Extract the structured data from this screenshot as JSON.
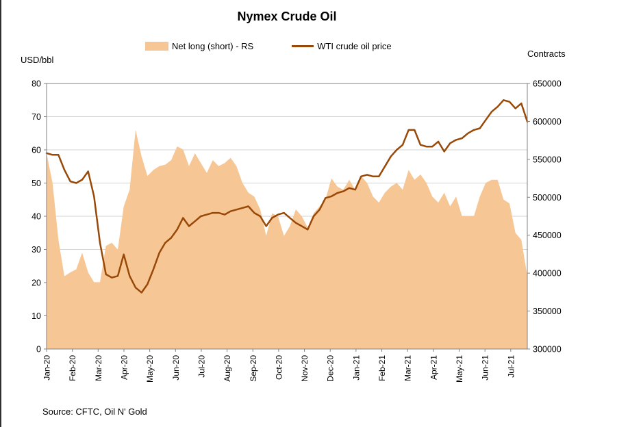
{
  "page": {
    "title": "Nymex Crude Oil",
    "source": "Source: CFTC, Oil N' Gold",
    "left_axis_unit": "USD/bbl",
    "right_axis_unit": "Contracts"
  },
  "legend": {
    "area_label": "Net long (short) - RS",
    "line_label": "WTI crude oil price"
  },
  "colors": {
    "area_fill": "#F7C695",
    "line": "#984807",
    "gridline": "#D3D3D3",
    "axis_border": "#808080",
    "text": "#000000",
    "background": "#FFFFFF"
  },
  "chart_data": {
    "type": "area",
    "subtype": "combo-area-line-dual-axis",
    "title": "Nymex Crude Oil",
    "grid": "horizontal",
    "legend_position": "top",
    "x_tick_labels": [
      "Jan-20",
      "Feb-20",
      "Mar-20",
      "Apr-20",
      "May-20",
      "Jun-20",
      "Jul-20",
      "Aug-20",
      "Sep-20",
      "Oct-20",
      "Nov-20",
      "Dec-20",
      "Jan-21",
      "Feb-21",
      "Mar-21",
      "Apr-21",
      "May-21",
      "Jun-21",
      "Jul-21"
    ],
    "x_frequency": "weekly",
    "weeks_per_month": 4.345,
    "left_axis": {
      "label": "USD/bbl",
      "range": [
        0,
        80
      ],
      "ticks": [
        0,
        10,
        20,
        30,
        40,
        50,
        60,
        70,
        80
      ]
    },
    "right_axis": {
      "label": "Contracts",
      "range": [
        300000,
        650000
      ],
      "ticks": [
        300000,
        350000,
        400000,
        450000,
        500000,
        550000,
        600000,
        650000
      ]
    },
    "series": [
      {
        "name": "Net long (short) - RS",
        "type": "area",
        "axis": "right",
        "unit": "contracts",
        "values": [
          558000,
          519000,
          444000,
          396000,
          401000,
          405000,
          427000,
          401000,
          388000,
          388000,
          436000,
          440000,
          431000,
          488000,
          510000,
          589000,
          554000,
          528000,
          536000,
          541000,
          543000,
          549000,
          567000,
          563000,
          541000,
          558000,
          545000,
          532000,
          549000,
          541000,
          545000,
          552000,
          541000,
          519000,
          506000,
          501000,
          484000,
          449000,
          479000,
          475000,
          449000,
          462000,
          484000,
          475000,
          460000,
          479000,
          488000,
          497000,
          525000,
          514000,
          510000,
          523000,
          510000,
          528000,
          519000,
          501000,
          493000,
          506000,
          514000,
          519000,
          510000,
          536000,
          523000,
          530000,
          519000,
          501000,
          493000,
          506000,
          488000,
          501000,
          475000,
          475000,
          475000,
          501000,
          519000,
          523000,
          523000,
          497000,
          492000,
          453000,
          444000,
          396000
        ]
      },
      {
        "name": "WTI crude oil price",
        "type": "line",
        "axis": "left",
        "unit": "USD/bbl",
        "values": [
          59,
          58.5,
          58.5,
          54,
          50.5,
          50,
          51,
          53.5,
          46,
          32,
          22.5,
          21.5,
          22,
          28.5,
          22,
          18.5,
          17,
          19.5,
          24,
          29,
          32,
          33.5,
          36,
          39.5,
          37,
          38.5,
          40,
          40.5,
          41,
          41,
          40.5,
          41.5,
          42,
          42.5,
          43,
          41,
          40,
          37,
          39.5,
          40.5,
          41,
          39.5,
          38,
          37,
          36,
          40,
          42,
          45.5,
          46,
          47,
          47.5,
          48.5,
          48,
          52,
          52.5,
          52,
          52,
          55,
          58,
          60,
          61.5,
          66,
          66,
          61.5,
          61,
          61,
          62.5,
          59.5,
          62,
          63,
          63.5,
          65,
          66,
          66.5,
          69,
          71.5,
          73,
          75,
          74.5,
          72.5,
          74,
          68.5
        ]
      }
    ]
  }
}
